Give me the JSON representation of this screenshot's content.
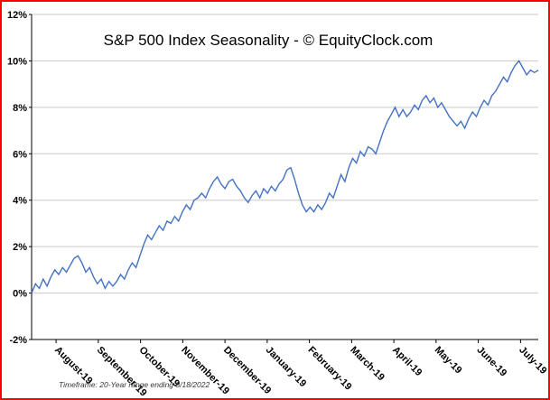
{
  "page": {
    "border_color": "#ff0000",
    "background": "#ffffff"
  },
  "chart_data": {
    "type": "line",
    "title": "S&P 500 Index Seasonality - © EquityClock.com",
    "footnote": "Timeframe: 20-Year range ending 8/18/2022",
    "x_tick_labels": [
      "August-19",
      "September-19",
      "October-19",
      "November-19",
      "December-19",
      "January-19",
      "February-19",
      "March-19",
      "April-19",
      "May-19",
      "June-19",
      "July-19"
    ],
    "y_tick_labels": [
      "-2%",
      "0%",
      "2%",
      "4%",
      "6%",
      "8%",
      "10%",
      "12%"
    ],
    "ylim": [
      -2,
      12
    ],
    "y_step": 2,
    "grid": true,
    "legend": "none",
    "line_color": "#4472c4",
    "grid_color": "#c9c9c9",
    "axis_color": "#000000",
    "values": [
      0.0,
      0.4,
      0.2,
      0.6,
      0.3,
      0.7,
      1.0,
      0.8,
      1.1,
      0.9,
      1.2,
      1.5,
      1.6,
      1.3,
      0.9,
      1.1,
      0.7,
      0.4,
      0.6,
      0.2,
      0.5,
      0.3,
      0.5,
      0.8,
      0.6,
      1.0,
      1.3,
      1.1,
      1.6,
      2.1,
      2.5,
      2.3,
      2.6,
      2.9,
      2.7,
      3.1,
      3.0,
      3.3,
      3.1,
      3.5,
      3.8,
      3.6,
      4.0,
      4.1,
      4.3,
      4.1,
      4.5,
      4.8,
      5.0,
      4.7,
      4.5,
      4.8,
      4.9,
      4.6,
      4.4,
      4.1,
      3.9,
      4.2,
      4.4,
      4.1,
      4.5,
      4.3,
      4.6,
      4.4,
      4.7,
      4.9,
      5.3,
      5.4,
      4.9,
      4.3,
      3.8,
      3.5,
      3.7,
      3.5,
      3.8,
      3.6,
      3.9,
      4.3,
      4.1,
      4.6,
      5.1,
      4.8,
      5.4,
      5.8,
      5.6,
      6.1,
      5.9,
      6.3,
      6.2,
      6.0,
      6.5,
      7.0,
      7.4,
      7.7,
      8.0,
      7.6,
      7.9,
      7.6,
      7.8,
      8.1,
      7.9,
      8.3,
      8.5,
      8.2,
      8.4,
      8.0,
      8.2,
      7.9,
      7.6,
      7.4,
      7.2,
      7.4,
      7.1,
      7.5,
      7.8,
      7.6,
      8.0,
      8.3,
      8.1,
      8.5,
      8.7,
      9.0,
      9.3,
      9.1,
      9.5,
      9.8,
      10.0,
      9.7,
      9.4,
      9.6,
      9.5,
      9.6
    ]
  }
}
